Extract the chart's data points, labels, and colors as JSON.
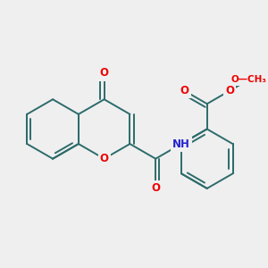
{
  "bg": "#efefef",
  "bond_color": "#2d6b6b",
  "bond_lw": 1.4,
  "atom_colors": {
    "O": "#ee0000",
    "N": "#2222cc",
    "C": "#2d6b6b"
  },
  "font_size": 8.5,
  "figsize": [
    3.0,
    3.0
  ],
  "dpi": 100,
  "xlim": [
    -3.3,
    2.7
  ],
  "ylim": [
    -2.0,
    2.1
  ]
}
